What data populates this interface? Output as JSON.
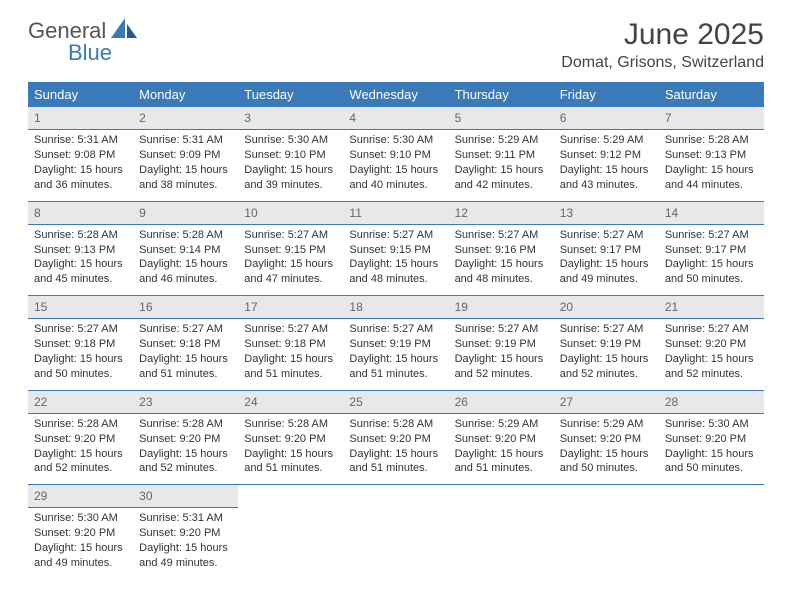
{
  "logo": {
    "text_general": "General",
    "text_blue": "Blue"
  },
  "title": "June 2025",
  "location": "Domat, Grisons, Switzerland",
  "colors": {
    "header_bg": "#3a7ab8",
    "header_text": "#ffffff",
    "daynum_bg": "#e8e8e8",
    "border": "#3a7ab8",
    "body_text": "#333333"
  },
  "weekdays": [
    "Sunday",
    "Monday",
    "Tuesday",
    "Wednesday",
    "Thursday",
    "Friday",
    "Saturday"
  ],
  "weeks": [
    [
      {
        "day": "1",
        "sunrise": "Sunrise: 5:31 AM",
        "sunset": "Sunset: 9:08 PM",
        "daylight": "Daylight: 15 hours and 36 minutes."
      },
      {
        "day": "2",
        "sunrise": "Sunrise: 5:31 AM",
        "sunset": "Sunset: 9:09 PM",
        "daylight": "Daylight: 15 hours and 38 minutes."
      },
      {
        "day": "3",
        "sunrise": "Sunrise: 5:30 AM",
        "sunset": "Sunset: 9:10 PM",
        "daylight": "Daylight: 15 hours and 39 minutes."
      },
      {
        "day": "4",
        "sunrise": "Sunrise: 5:30 AM",
        "sunset": "Sunset: 9:10 PM",
        "daylight": "Daylight: 15 hours and 40 minutes."
      },
      {
        "day": "5",
        "sunrise": "Sunrise: 5:29 AM",
        "sunset": "Sunset: 9:11 PM",
        "daylight": "Daylight: 15 hours and 42 minutes."
      },
      {
        "day": "6",
        "sunrise": "Sunrise: 5:29 AM",
        "sunset": "Sunset: 9:12 PM",
        "daylight": "Daylight: 15 hours and 43 minutes."
      },
      {
        "day": "7",
        "sunrise": "Sunrise: 5:28 AM",
        "sunset": "Sunset: 9:13 PM",
        "daylight": "Daylight: 15 hours and 44 minutes."
      }
    ],
    [
      {
        "day": "8",
        "sunrise": "Sunrise: 5:28 AM",
        "sunset": "Sunset: 9:13 PM",
        "daylight": "Daylight: 15 hours and 45 minutes."
      },
      {
        "day": "9",
        "sunrise": "Sunrise: 5:28 AM",
        "sunset": "Sunset: 9:14 PM",
        "daylight": "Daylight: 15 hours and 46 minutes."
      },
      {
        "day": "10",
        "sunrise": "Sunrise: 5:27 AM",
        "sunset": "Sunset: 9:15 PM",
        "daylight": "Daylight: 15 hours and 47 minutes."
      },
      {
        "day": "11",
        "sunrise": "Sunrise: 5:27 AM",
        "sunset": "Sunset: 9:15 PM",
        "daylight": "Daylight: 15 hours and 48 minutes."
      },
      {
        "day": "12",
        "sunrise": "Sunrise: 5:27 AM",
        "sunset": "Sunset: 9:16 PM",
        "daylight": "Daylight: 15 hours and 48 minutes."
      },
      {
        "day": "13",
        "sunrise": "Sunrise: 5:27 AM",
        "sunset": "Sunset: 9:17 PM",
        "daylight": "Daylight: 15 hours and 49 minutes."
      },
      {
        "day": "14",
        "sunrise": "Sunrise: 5:27 AM",
        "sunset": "Sunset: 9:17 PM",
        "daylight": "Daylight: 15 hours and 50 minutes."
      }
    ],
    [
      {
        "day": "15",
        "sunrise": "Sunrise: 5:27 AM",
        "sunset": "Sunset: 9:18 PM",
        "daylight": "Daylight: 15 hours and 50 minutes."
      },
      {
        "day": "16",
        "sunrise": "Sunrise: 5:27 AM",
        "sunset": "Sunset: 9:18 PM",
        "daylight": "Daylight: 15 hours and 51 minutes."
      },
      {
        "day": "17",
        "sunrise": "Sunrise: 5:27 AM",
        "sunset": "Sunset: 9:18 PM",
        "daylight": "Daylight: 15 hours and 51 minutes."
      },
      {
        "day": "18",
        "sunrise": "Sunrise: 5:27 AM",
        "sunset": "Sunset: 9:19 PM",
        "daylight": "Daylight: 15 hours and 51 minutes."
      },
      {
        "day": "19",
        "sunrise": "Sunrise: 5:27 AM",
        "sunset": "Sunset: 9:19 PM",
        "daylight": "Daylight: 15 hours and 52 minutes."
      },
      {
        "day": "20",
        "sunrise": "Sunrise: 5:27 AM",
        "sunset": "Sunset: 9:19 PM",
        "daylight": "Daylight: 15 hours and 52 minutes."
      },
      {
        "day": "21",
        "sunrise": "Sunrise: 5:27 AM",
        "sunset": "Sunset: 9:20 PM",
        "daylight": "Daylight: 15 hours and 52 minutes."
      }
    ],
    [
      {
        "day": "22",
        "sunrise": "Sunrise: 5:28 AM",
        "sunset": "Sunset: 9:20 PM",
        "daylight": "Daylight: 15 hours and 52 minutes."
      },
      {
        "day": "23",
        "sunrise": "Sunrise: 5:28 AM",
        "sunset": "Sunset: 9:20 PM",
        "daylight": "Daylight: 15 hours and 52 minutes."
      },
      {
        "day": "24",
        "sunrise": "Sunrise: 5:28 AM",
        "sunset": "Sunset: 9:20 PM",
        "daylight": "Daylight: 15 hours and 51 minutes."
      },
      {
        "day": "25",
        "sunrise": "Sunrise: 5:28 AM",
        "sunset": "Sunset: 9:20 PM",
        "daylight": "Daylight: 15 hours and 51 minutes."
      },
      {
        "day": "26",
        "sunrise": "Sunrise: 5:29 AM",
        "sunset": "Sunset: 9:20 PM",
        "daylight": "Daylight: 15 hours and 51 minutes."
      },
      {
        "day": "27",
        "sunrise": "Sunrise: 5:29 AM",
        "sunset": "Sunset: 9:20 PM",
        "daylight": "Daylight: 15 hours and 50 minutes."
      },
      {
        "day": "28",
        "sunrise": "Sunrise: 5:30 AM",
        "sunset": "Sunset: 9:20 PM",
        "daylight": "Daylight: 15 hours and 50 minutes."
      }
    ],
    [
      {
        "day": "29",
        "sunrise": "Sunrise: 5:30 AM",
        "sunset": "Sunset: 9:20 PM",
        "daylight": "Daylight: 15 hours and 49 minutes."
      },
      {
        "day": "30",
        "sunrise": "Sunrise: 5:31 AM",
        "sunset": "Sunset: 9:20 PM",
        "daylight": "Daylight: 15 hours and 49 minutes."
      },
      null,
      null,
      null,
      null,
      null
    ]
  ]
}
